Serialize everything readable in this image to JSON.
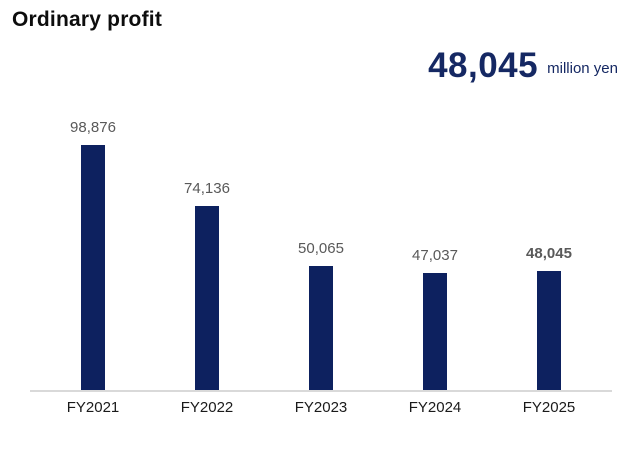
{
  "title": "Ordinary profit",
  "headline": {
    "value": "48,045",
    "unit": "million yen"
  },
  "chart_data": {
    "type": "bar",
    "title": "Ordinary profit",
    "categories": [
      "FY2021",
      "FY2022",
      "FY2023",
      "FY2024",
      "FY2025"
    ],
    "values": [
      98876,
      74136,
      50065,
      47037,
      48045
    ],
    "value_labels": [
      "98,876",
      "74,136",
      "50,065",
      "47,037",
      "48,045"
    ],
    "highlight_index": 4,
    "unit": "million yen",
    "xlabel": "",
    "ylabel": "",
    "ylim": [
      0,
      100000
    ],
    "grid": false,
    "legend": "none",
    "colors": {
      "bar": "#0d215f",
      "headline_text": "#152863",
      "value_label": "#595959",
      "axis_label": "#1a1a1a",
      "baseline": "#d9d9d9",
      "title": "#0d0d0d"
    }
  }
}
